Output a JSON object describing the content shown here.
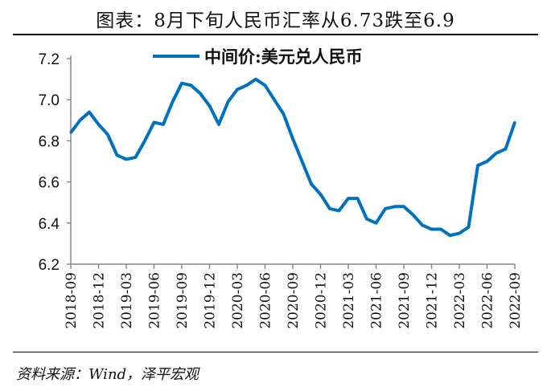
{
  "title": "图表：8月下旬人民币汇率从6.73跌至6.9",
  "source": "资料来源：Wind，泽平宏观",
  "chart_data": {
    "type": "line",
    "title": "图表：8月下旬人民币汇率从6.73跌至6.9",
    "xlabel": "",
    "ylabel": "",
    "ylim": [
      6.2,
      7.2
    ],
    "yticks": [
      "6.2",
      "6.4",
      "6.6",
      "6.8",
      "7.0",
      "7.2"
    ],
    "xticks": [
      "2018-09",
      "2018-12",
      "2019-03",
      "2019-06",
      "2019-09",
      "2019-12",
      "2020-03",
      "2020-06",
      "2020-09",
      "2020-12",
      "2021-03",
      "2021-06",
      "2021-09",
      "2021-12",
      "2022-03",
      "2022-06",
      "2022-09"
    ],
    "grid": false,
    "legend": "top-center",
    "color": "#0070C0",
    "x": [
      "2018-09",
      "2018-10",
      "2018-11",
      "2018-12",
      "2019-01",
      "2019-02",
      "2019-03",
      "2019-04",
      "2019-05",
      "2019-06",
      "2019-07",
      "2019-08",
      "2019-09",
      "2019-10",
      "2019-11",
      "2019-12",
      "2020-01",
      "2020-02",
      "2020-03",
      "2020-04",
      "2020-05",
      "2020-06",
      "2020-07",
      "2020-08",
      "2020-09",
      "2020-10",
      "2020-11",
      "2020-12",
      "2021-01",
      "2021-02",
      "2021-03",
      "2021-04",
      "2021-05",
      "2021-06",
      "2021-07",
      "2021-08",
      "2021-09",
      "2021-10",
      "2021-11",
      "2021-12",
      "2022-01",
      "2022-02",
      "2022-03",
      "2022-04",
      "2022-05",
      "2022-06",
      "2022-07",
      "2022-08",
      "2022-09"
    ],
    "series": [
      {
        "name": "中间价:美元兑人民币",
        "values": [
          6.84,
          6.9,
          6.94,
          6.88,
          6.83,
          6.73,
          6.71,
          6.72,
          6.8,
          6.89,
          6.88,
          6.99,
          7.08,
          7.07,
          7.03,
          6.97,
          6.88,
          6.99,
          7.05,
          7.07,
          7.1,
          7.07,
          7.0,
          6.93,
          6.81,
          6.7,
          6.59,
          6.54,
          6.47,
          6.46,
          6.52,
          6.52,
          6.42,
          6.4,
          6.47,
          6.48,
          6.48,
          6.44,
          6.39,
          6.37,
          6.37,
          6.34,
          6.35,
          6.38,
          6.68,
          6.7,
          6.74,
          6.76,
          6.89
        ]
      }
    ]
  }
}
